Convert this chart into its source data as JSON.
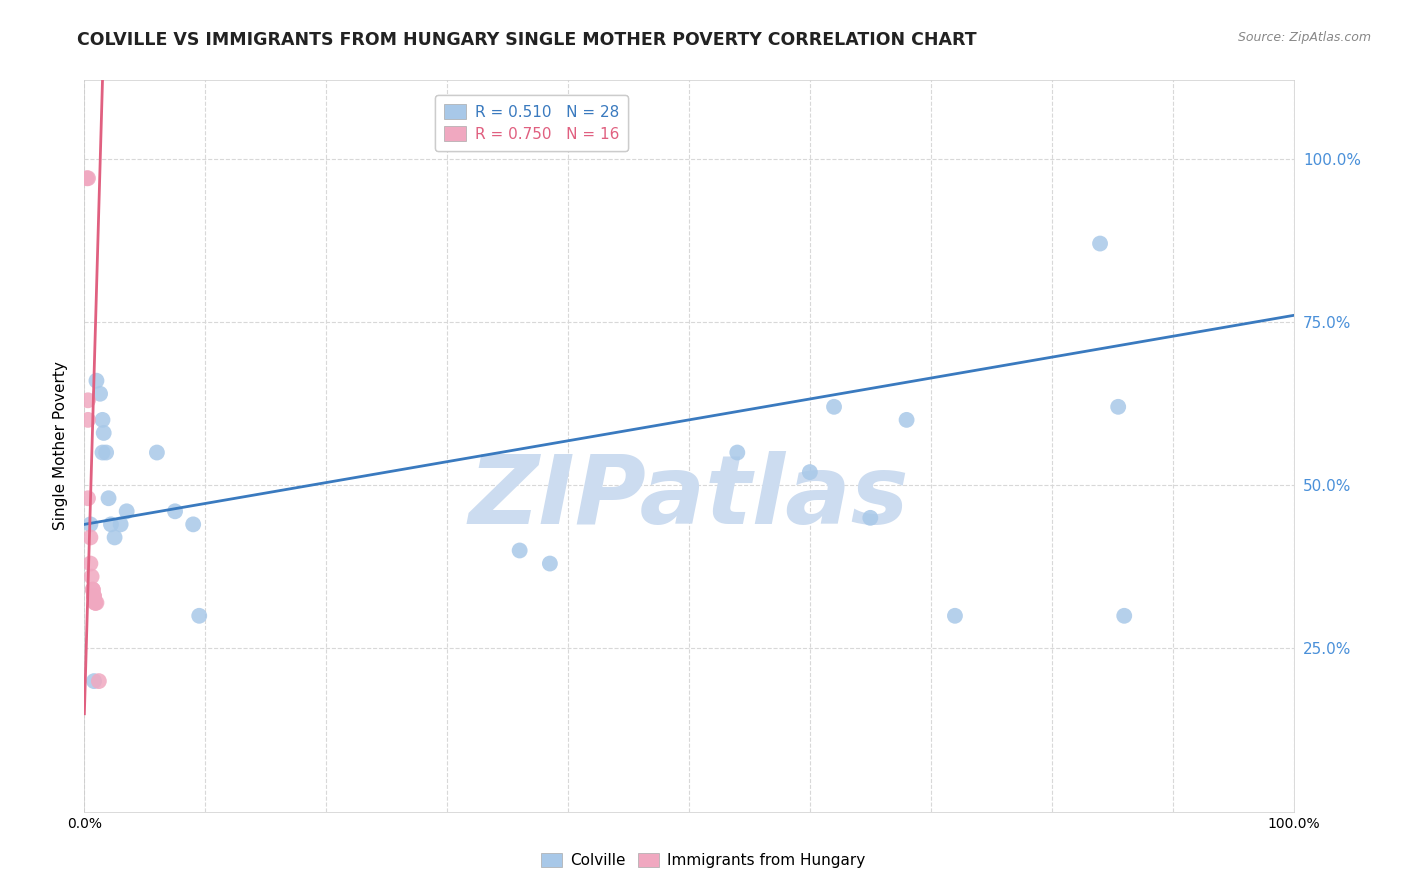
{
  "title": "COLVILLE VS IMMIGRANTS FROM HUNGARY SINGLE MOTHER POVERTY CORRELATION CHART",
  "source": "Source: ZipAtlas.com",
  "ylabel": "Single Mother Poverty",
  "legend_labels": [
    "Colville",
    "Immigrants from Hungary"
  ],
  "r_colville": 0.51,
  "n_colville": 28,
  "r_hungary": 0.75,
  "n_hungary": 16,
  "colville_color": "#a8c8e8",
  "hungary_color": "#f0a8c0",
  "colville_line_color": "#3a7abf",
  "hungary_line_color": "#e06080",
  "background_color": "#ffffff",
  "grid_color": "#d8d8d8",
  "ytick_color": "#4a90d9",
  "colville_x": [
    0.008,
    0.01,
    0.013,
    0.015,
    0.015,
    0.016,
    0.018,
    0.02,
    0.022,
    0.025,
    0.03,
    0.035,
    0.06,
    0.075,
    0.09,
    0.095,
    0.36,
    0.385,
    0.54,
    0.6,
    0.62,
    0.65,
    0.68,
    0.72,
    0.84,
    0.855,
    0.86,
    0.005
  ],
  "colville_y": [
    0.2,
    0.66,
    0.64,
    0.6,
    0.55,
    0.58,
    0.55,
    0.48,
    0.44,
    0.42,
    0.44,
    0.46,
    0.55,
    0.46,
    0.44,
    0.3,
    0.4,
    0.38,
    0.55,
    0.52,
    0.62,
    0.45,
    0.6,
    0.3,
    0.87,
    0.62,
    0.3,
    0.44
  ],
  "hungary_x": [
    0.002,
    0.003,
    0.003,
    0.003,
    0.003,
    0.005,
    0.005,
    0.006,
    0.007,
    0.007,
    0.008,
    0.008,
    0.009,
    0.009,
    0.01,
    0.012
  ],
  "hungary_y": [
    0.97,
    0.97,
    0.63,
    0.6,
    0.48,
    0.42,
    0.38,
    0.36,
    0.34,
    0.34,
    0.33,
    0.33,
    0.32,
    0.32,
    0.32,
    0.2
  ],
  "xlim": [
    0.0,
    1.0
  ],
  "ylim": [
    0.0,
    1.12
  ],
  "yticks": [
    0.25,
    0.5,
    0.75,
    1.0
  ],
  "ytick_labels": [
    "25.0%",
    "50.0%",
    "75.0%",
    "100.0%"
  ],
  "xticks": [
    0.0,
    0.1,
    0.2,
    0.3,
    0.4,
    0.5,
    0.6,
    0.7,
    0.8,
    0.9,
    1.0
  ],
  "xtick_labels": [
    "0.0%",
    "",
    "",
    "",
    "",
    "",
    "",
    "",
    "",
    "",
    "100.0%"
  ],
  "watermark": "ZIPatlas",
  "watermark_color": "#ccdcf0",
  "title_fontsize": 12.5,
  "label_fontsize": 11,
  "tick_fontsize": 10,
  "legend_fontsize": 11,
  "colville_trend_x": [
    0.0,
    1.0
  ],
  "colville_trend_y": [
    0.44,
    0.76
  ],
  "hungary_trend_x": [
    0.0,
    0.015
  ],
  "hungary_trend_y": [
    0.15,
    1.12
  ]
}
